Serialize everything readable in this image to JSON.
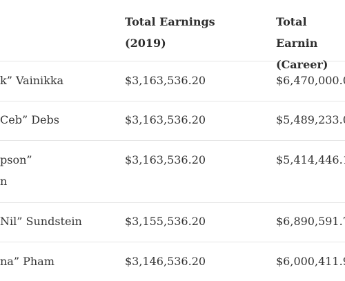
{
  "table": {
    "columns": [
      "",
      "Total Earnings\n(2019)",
      "Total Earnin\n(Career)"
    ],
    "rows": [
      {
        "name": "k” Vainikka",
        "earnings_2019": "$3,163,536.20",
        "earnings_career": "$6,470,000.0"
      },
      {
        "name": "Ceb” Debs",
        "earnings_2019": "$3,163,536.20",
        "earnings_career": "$5,489,233.0"
      },
      {
        "name": "pson”\nn",
        "earnings_2019": "$3,163,536.20",
        "earnings_career": "$5,414,446.1"
      },
      {
        "name": "Nil” Sundstein",
        "earnings_2019": "$3,155,536.20",
        "earnings_career": "$6,890,591.7"
      },
      {
        "name": "na” Pham",
        "earnings_2019": "$3,146,536.20",
        "earnings_career": "$6,000,411.9"
      }
    ]
  }
}
